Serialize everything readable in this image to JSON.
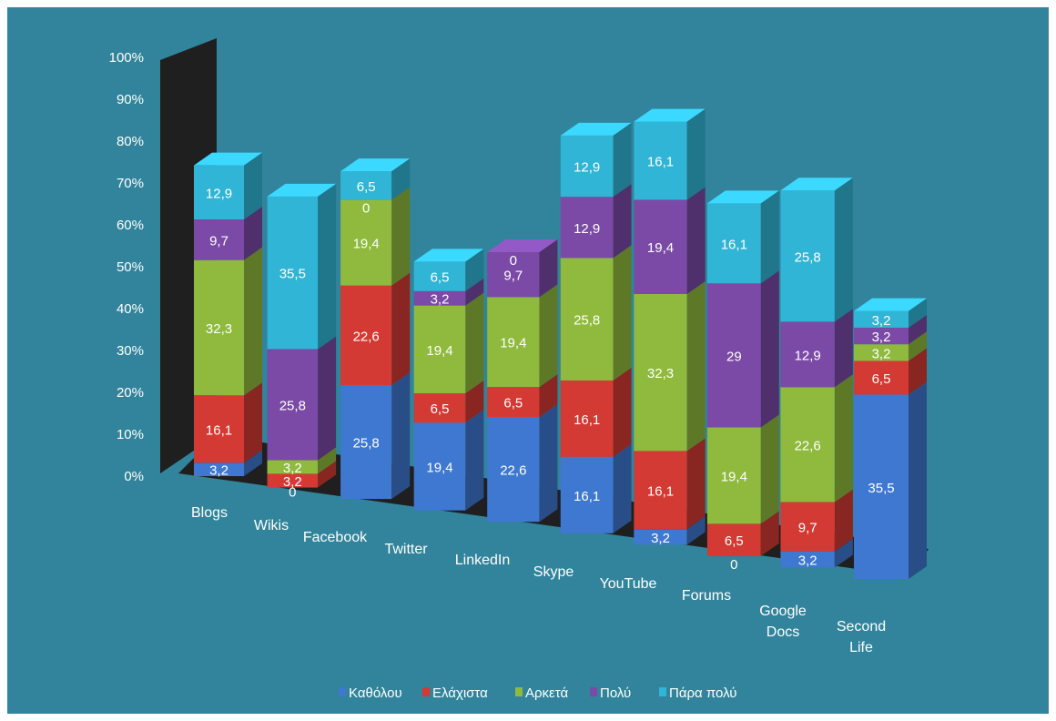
{
  "chart_data": {
    "type": "bar",
    "stacked": true,
    "orientation": "vertical",
    "three_d": true,
    "ylim": [
      0,
      100
    ],
    "yticks": [
      "0%",
      "10%",
      "20%",
      "30%",
      "40%",
      "50%",
      "60%",
      "70%",
      "80%",
      "90%",
      "100%"
    ],
    "categories": [
      "Blogs",
      "Wikis",
      "Facebook",
      "Twitter",
      "LinkedIn",
      "Skype",
      "YouTube",
      "Forums",
      "Google Docs",
      "Second Life"
    ],
    "category_display": [
      [
        "Blogs"
      ],
      [
        "Wikis"
      ],
      [
        "Facebook"
      ],
      [
        "Twitter"
      ],
      [
        "LinkedIn"
      ],
      [
        "Skype"
      ],
      [
        "YouTube"
      ],
      [
        "Forums"
      ],
      [
        "Google",
        "Docs"
      ],
      [
        "Second",
        "Life"
      ]
    ],
    "series": [
      {
        "name": "Καθόλου",
        "color": "#3f78d0",
        "values": [
          3.2,
          0,
          25.8,
          19.4,
          22.6,
          16.1,
          3.2,
          0,
          3.2,
          35.5
        ],
        "labels": [
          "3,2",
          "",
          "25,8",
          "19,4",
          "22,6",
          "16,1",
          "3,2",
          "0",
          "3,2",
          "35,5"
        ]
      },
      {
        "name": "Ελάχιστα",
        "color": "#d33a33",
        "values": [
          16.1,
          3.2,
          22.6,
          6.5,
          6.5,
          16.1,
          16.1,
          6.5,
          9.7,
          6.5
        ],
        "labels": [
          "16,1",
          "3,2",
          "22,6",
          "6,5",
          "6,5",
          "16,1",
          "16,1",
          "6,5",
          "9,7",
          "6,5"
        ]
      },
      {
        "name": "Αρκετά",
        "color": "#8fba3e",
        "values": [
          32.3,
          3.2,
          19.4,
          19.4,
          19.4,
          25.8,
          32.3,
          19.4,
          22.6,
          3.2
        ],
        "labels": [
          "32,3",
          "3,2",
          "19,4",
          "19,4",
          "19,4",
          "25,8",
          "32,3",
          "19,4",
          "22,6",
          "3,2"
        ]
      },
      {
        "name": "Πολύ",
        "color": "#7a4aa6",
        "values": [
          9.7,
          25.8,
          0,
          3.2,
          9.7,
          12.9,
          19.4,
          29,
          12.9,
          3.2
        ],
        "labels": [
          "9,7",
          "25,8",
          "0",
          "3,2",
          "9,7",
          "12,9",
          "19,4",
          "29",
          "12,9",
          "3,2"
        ]
      },
      {
        "name": "Πάρα πολύ",
        "color": "#31b5d6",
        "values": [
          12.9,
          35.5,
          6.5,
          6.5,
          0,
          12.9,
          16.1,
          16.1,
          25.8,
          3.2
        ],
        "labels": [
          "12,9",
          "35,5",
          "6,5",
          "6,5",
          "0",
          "12,9",
          "16,1",
          "16,1",
          "25,8",
          "3,2"
        ]
      }
    ],
    "extra_labels": [
      {
        "category": "Wikis",
        "text": "0"
      }
    ],
    "legend_position": "bottom",
    "grid": false,
    "title": "",
    "xlabel": "",
    "ylabel": ""
  }
}
